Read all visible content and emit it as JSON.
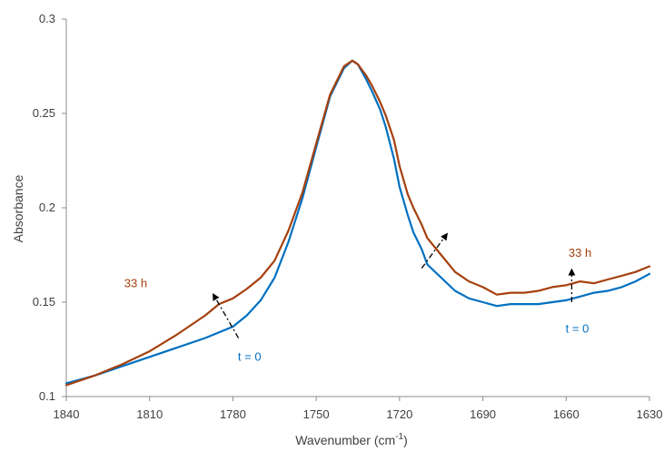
{
  "chart_data": {
    "type": "line",
    "title": "",
    "xlabel": "Wavenumber (cm",
    "xlabel_sup": "-1",
    "xlabel_close": ")",
    "ylabel": "Absorbance",
    "x_reversed": true,
    "xlim": [
      1840,
      1630
    ],
    "ylim": [
      0.1,
      0.3
    ],
    "x_ticks": [
      1840,
      1810,
      1780,
      1750,
      1720,
      1690,
      1660,
      1630
    ],
    "y_ticks": [
      0.1,
      0.15,
      0.2,
      0.25,
      0.3
    ],
    "y_tick_labels": [
      "0.1",
      "0.15",
      "0.2",
      "0.25",
      "0.3"
    ],
    "grid": false,
    "legend": "none",
    "series": [
      {
        "color": "#0070C0",
        "x": [
          1840,
          1830,
          1820,
          1810,
          1800,
          1790,
          1780,
          1775,
          1770,
          1765,
          1760,
          1755,
          1750,
          1745,
          1740,
          1737,
          1735,
          1732,
          1730,
          1727,
          1725,
          1722,
          1720,
          1717,
          1715,
          1712,
          1710,
          1705,
          1700,
          1695,
          1690,
          1685,
          1680,
          1675,
          1670,
          1665,
          1660,
          1655,
          1650,
          1645,
          1640,
          1635,
          1630
        ],
        "y": [
          0.107,
          0.111,
          0.116,
          0.121,
          0.126,
          0.131,
          0.137,
          0.143,
          0.151,
          0.163,
          0.182,
          0.205,
          0.232,
          0.259,
          0.274,
          0.278,
          0.276,
          0.268,
          0.262,
          0.252,
          0.243,
          0.226,
          0.211,
          0.196,
          0.187,
          0.178,
          0.17,
          0.163,
          0.156,
          0.152,
          0.15,
          0.148,
          0.149,
          0.149,
          0.149,
          0.15,
          0.151,
          0.153,
          0.155,
          0.156,
          0.158,
          0.161,
          0.165
        ]
      },
      {
        "color": "#A5400E",
        "x": [
          1840,
          1830,
          1820,
          1810,
          1800,
          1790,
          1785,
          1780,
          1775,
          1770,
          1765,
          1760,
          1755,
          1750,
          1745,
          1740,
          1737,
          1735,
          1732,
          1730,
          1727,
          1725,
          1722,
          1720,
          1717,
          1715,
          1712,
          1710,
          1705,
          1700,
          1695,
          1690,
          1685,
          1680,
          1675,
          1670,
          1665,
          1660,
          1655,
          1650,
          1645,
          1640,
          1635,
          1630
        ],
        "y": [
          0.106,
          0.111,
          0.117,
          0.124,
          0.133,
          0.143,
          0.149,
          0.152,
          0.157,
          0.163,
          0.172,
          0.188,
          0.208,
          0.234,
          0.26,
          0.275,
          0.278,
          0.276,
          0.27,
          0.265,
          0.256,
          0.249,
          0.236,
          0.222,
          0.207,
          0.2,
          0.191,
          0.184,
          0.175,
          0.166,
          0.161,
          0.158,
          0.154,
          0.155,
          0.155,
          0.156,
          0.158,
          0.159,
          0.161,
          0.16,
          0.162,
          0.164,
          0.166,
          0.169
        ]
      }
    ],
    "annotations": [
      {
        "text": "33 h",
        "x": 1815,
        "y": 0.158,
        "color": "#A5400E"
      },
      {
        "text": "t = 0",
        "x": 1774,
        "y": 0.119,
        "color": "#0070C0"
      },
      {
        "text": "33 h",
        "x": 1655,
        "y": 0.174,
        "color": "#A5400E"
      },
      {
        "text": "t = 0",
        "x": 1656,
        "y": 0.134,
        "color": "#0070C0"
      }
    ],
    "arrows": [
      {
        "from": [
          1778,
          0.131
        ],
        "to": [
          1787,
          0.154
        ]
      },
      {
        "from": [
          1712,
          0.168
        ],
        "to": [
          1703,
          0.186
        ]
      },
      {
        "from": [
          1658,
          0.15
        ],
        "to": [
          1658,
          0.167
        ]
      }
    ]
  }
}
